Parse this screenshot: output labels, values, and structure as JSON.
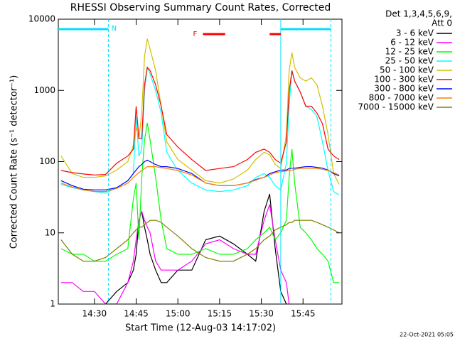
{
  "chart_data": {
    "type": "line",
    "title": "RHESSI Observing Summary Count Rates, Corrected",
    "x_label": "Start Time (12-Aug-03 14:17:02)",
    "y_label": "Corrected Count Rate (s⁻¹ detector⁻¹)",
    "legend_header": [
      "Det 1,3,4,5,6,9,",
      "Att 0"
    ],
    "footer": "22-Oct-2021 05:05",
    "log_y": true,
    "xlim": [
      "14:17",
      "15:59"
    ],
    "xticks": [
      "14:30",
      "14:45",
      "15:00",
      "15:15",
      "15:30",
      "15:45"
    ],
    "ylim": [
      1,
      10000
    ],
    "yticks": [
      1,
      10,
      100,
      1000,
      10000
    ],
    "night_intervals": [
      {
        "start": "14:17",
        "end": "14:35",
        "label": "N"
      },
      {
        "start": "15:37",
        "end": "15:55"
      }
    ],
    "flare_intervals": [
      {
        "start": "15:09",
        "end": "15:17",
        "label": "F"
      },
      {
        "start": "15:33",
        "end": "15:37"
      }
    ],
    "x": [
      "14:18",
      "14:22",
      "14:26",
      "14:30",
      "14:34",
      "14:38",
      "14:42",
      "14:44",
      "14:45",
      "14:46",
      "14:47",
      "14:48",
      "14:49",
      "14:50",
      "14:52",
      "14:54",
      "14:56",
      "15:00",
      "15:05",
      "15:10",
      "15:15",
      "15:20",
      "15:25",
      "15:28",
      "15:31",
      "15:33",
      "15:35",
      "15:37",
      "15:39",
      "15:40",
      "15:41",
      "15:42",
      "15:44",
      "15:46",
      "15:48",
      "15:50",
      "15:52",
      "15:54",
      "15:56",
      "15:58"
    ],
    "series": [
      {
        "name": "3 - 6 keV",
        "color": "#000000",
        "values": [
          null,
          null,
          null,
          null,
          1,
          1.5,
          2,
          3,
          5,
          15,
          20,
          12,
          8,
          5,
          3,
          2,
          2,
          3,
          3,
          8,
          9,
          7,
          5,
          4,
          20,
          35,
          6,
          1.5,
          1,
          null,
          null,
          null,
          null,
          null,
          null,
          null,
          null,
          null,
          null,
          null
        ]
      },
      {
        "name": "6 - 12 keV",
        "color": "#ff00ff",
        "values": [
          2,
          2,
          1.5,
          1.5,
          1,
          1,
          2,
          4,
          8,
          15,
          20,
          15,
          12,
          10,
          4,
          3,
          3,
          3,
          4,
          7,
          8,
          6,
          5,
          5,
          15,
          25,
          8,
          3,
          2,
          1,
          null,
          null,
          null,
          null,
          null,
          null,
          null,
          null,
          null,
          null
        ]
      },
      {
        "name": "12 - 25 keV",
        "color": "#00ff00",
        "values": [
          6,
          5,
          5,
          4,
          4,
          5,
          6,
          30,
          50,
          8,
          60,
          200,
          350,
          200,
          60,
          15,
          6,
          5,
          5,
          6,
          5,
          5,
          6,
          8,
          10,
          12,
          8,
          10,
          15,
          60,
          150,
          50,
          12,
          10,
          8,
          6,
          5,
          4,
          2,
          2
        ]
      },
      {
        "name": "25 - 50 keV",
        "color": "#00ffff",
        "values": [
          48,
          43,
          40,
          38,
          36,
          43,
          54,
          68,
          430,
          120,
          150,
          1000,
          2100,
          1700,
          1000,
          480,
          135,
          75,
          50,
          40,
          38,
          40,
          46,
          60,
          68,
          60,
          46,
          40,
          95,
          600,
          1900,
          1350,
          950,
          600,
          540,
          430,
          190,
          75,
          38,
          34
        ]
      },
      {
        "name": "50 - 100 keV",
        "color": "#d0c000",
        "values": [
          120,
          68,
          60,
          60,
          63,
          76,
          100,
          170,
          300,
          210,
          480,
          3000,
          5300,
          3800,
          1900,
          600,
          190,
          107,
          76,
          54,
          50,
          57,
          76,
          107,
          135,
          125,
          91,
          80,
          240,
          1900,
          3400,
          2100,
          1500,
          1350,
          1500,
          1200,
          600,
          240,
          68,
          48
        ]
      },
      {
        "name": "100 - 300 keV",
        "color": "#ff0000",
        "values": [
          75,
          70,
          67,
          65,
          66,
          95,
          120,
          150,
          600,
          210,
          210,
          1200,
          2100,
          1900,
          1200,
          600,
          240,
          160,
          107,
          75,
          80,
          85,
          107,
          135,
          150,
          135,
          107,
          95,
          190,
          950,
          1900,
          1350,
          950,
          600,
          600,
          480,
          340,
          150,
          120,
          107
        ]
      },
      {
        "name": "300 - 800 keV",
        "color": "#0000ff",
        "values": [
          54,
          46,
          41,
          40,
          40,
          43,
          54,
          68,
          76,
          85,
          91,
          100,
          105,
          100,
          91,
          85,
          85,
          80,
          68,
          50,
          46,
          46,
          50,
          56,
          60,
          68,
          72,
          76,
          76,
          80,
          81,
          81,
          83,
          85,
          85,
          83,
          81,
          76,
          68,
          63
        ]
      },
      {
        "name": "800 - 7000 keV",
        "color": "#ff8000",
        "values": [
          50,
          44,
          40,
          38,
          38,
          42,
          50,
          60,
          65,
          70,
          75,
          80,
          85,
          85,
          85,
          82,
          80,
          75,
          65,
          50,
          46,
          46,
          50,
          55,
          60,
          65,
          70,
          72,
          74,
          75,
          76,
          78,
          80,
          80,
          80,
          80,
          78,
          75,
          70,
          65
        ]
      },
      {
        "name": "7000 - 15000 keV",
        "color": "#808000",
        "values": [
          8,
          5,
          4,
          4,
          4.5,
          6,
          8,
          10,
          11,
          12,
          12,
          13,
          14,
          15,
          15,
          14,
          12,
          9,
          6,
          4.5,
          4,
          4,
          5,
          6,
          8,
          9,
          11,
          12,
          13,
          14,
          14,
          15,
          15,
          15,
          15,
          14,
          13,
          12,
          11,
          10
        ]
      }
    ]
  }
}
